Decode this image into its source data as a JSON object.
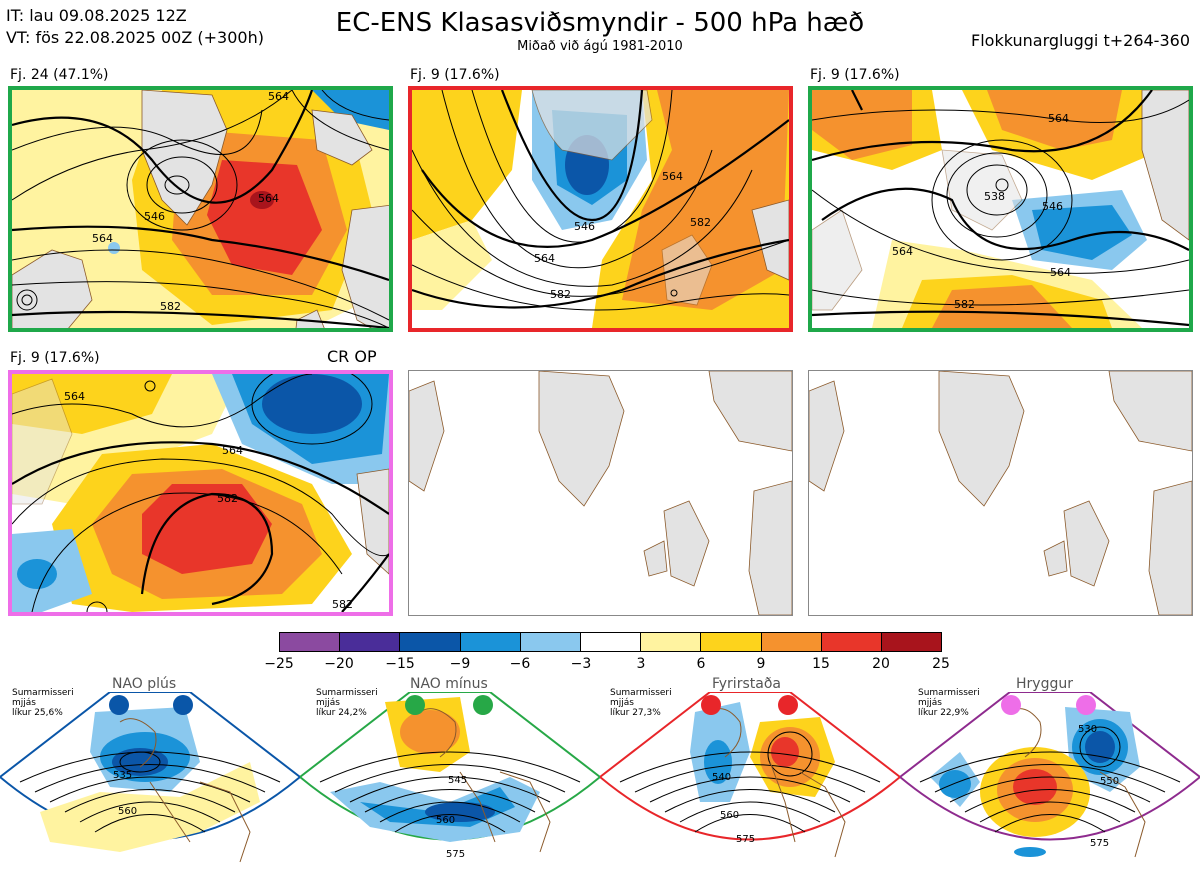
{
  "header": {
    "it_line": "IT: lau 09.08.2025 12Z",
    "vt_line": "VT: fös 22.08.2025 00Z  (+300h)",
    "title": "EC-ENS Klasasviðsmyndir - 500 hPa hæð",
    "subtitle": "Miðað við ágú 1981-2010",
    "window": "Flokkunargluggi t+264-360"
  },
  "colors": {
    "green": "#1fa84a",
    "red": "#e8262a",
    "pink": "#ee6ee8",
    "nao_plus": "#0a56a8",
    "nao_minus": "#27a847",
    "fyrirstada": "#e8262a",
    "hryggur": "#8e2b8e",
    "land": "#e3e3e3",
    "coast": "#8b5a2b"
  },
  "panels": [
    {
      "label": "Fj. 24 (47.1%)",
      "contours": [
        "564",
        "546",
        "564",
        "582",
        "564"
      ]
    },
    {
      "label": "Fj. 9 (17.6%)",
      "contours": [
        "546",
        "564",
        "564",
        "582",
        "582"
      ]
    },
    {
      "label": "Fj. 9 (17.6%)",
      "contours": [
        "564",
        "564",
        "546",
        "538",
        "564",
        "582"
      ]
    },
    {
      "label": "Fj. 9 (17.6%)",
      "tag": "CR OP",
      "contours": [
        "564",
        "582",
        "564",
        "582"
      ]
    }
  ],
  "colorbar": {
    "ticks": [
      "−25",
      "−20",
      "−15",
      "−9",
      "−6",
      "−3",
      "3",
      "6",
      "9",
      "15",
      "20",
      "25"
    ],
    "colors": [
      "#8b4aa0",
      "#4a2d99",
      "#0b56a8",
      "#1b93d8",
      "#8ac8ee",
      "#ffffff",
      "#fff3a0",
      "#fdd31c",
      "#f5922e",
      "#e8362a",
      "#a8141c"
    ]
  },
  "regimes": [
    {
      "name": "NAO plús",
      "season": "Sumarmisseri",
      "mean": "mjjás",
      "prob": "líkur 25,6%",
      "contours": [
        "535",
        "560"
      ]
    },
    {
      "name": "NAO mínus",
      "season": "Sumarmisseri",
      "mean": "mjjás",
      "prob": "líkur 24,2%",
      "contours": [
        "545",
        "560",
        "575"
      ]
    },
    {
      "name": "Fyrirstaða",
      "season": "Sumarmisseri",
      "mean": "mjjás",
      "prob": "líkur 27,3%",
      "contours": [
        "540",
        "560",
        "575"
      ]
    },
    {
      "name": "Hryggur",
      "season": "Sumarmisseri",
      "mean": "mjjás",
      "prob": "líkur 22,9%",
      "contours": [
        "530",
        "550",
        "575"
      ]
    }
  ]
}
